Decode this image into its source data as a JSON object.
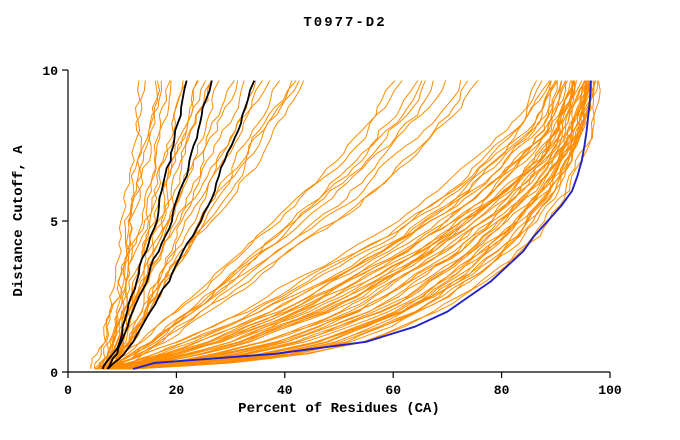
{
  "chart_data": {
    "type": "line",
    "title": "T0977-D2",
    "xlabel": "Percent of Residues (CA)",
    "ylabel": "Distance Cutoff, A",
    "xlim": [
      0,
      100
    ],
    "ylim": [
      0,
      10
    ],
    "x_ticks": [
      0,
      20,
      40,
      60,
      80,
      100
    ],
    "x_tick_labels": [
      "0",
      "20",
      "40",
      "60",
      "80",
      "100"
    ],
    "y_ticks": [
      0,
      5,
      10
    ],
    "y_tick_labels": [
      "0",
      "5",
      "10"
    ],
    "grid": false,
    "legend": "none",
    "colors": {
      "background": "#ffffff",
      "axis": "#000000",
      "models": "#ff8c00",
      "highlight_model": "#2222cc",
      "reference": "#000000"
    },
    "y_levels": [
      0.1,
      0.3,
      0.6,
      1,
      1.5,
      2,
      2.5,
      3,
      3.5,
      4,
      4.5,
      5,
      5.5,
      6,
      6.5,
      7,
      7.5,
      8,
      8.5,
      9,
      9.65
    ],
    "orange_groups": [
      {
        "name": "left-band",
        "count": 26,
        "anchors": [
          [
            6,
            6.5,
            7,
            7.5,
            8,
            8.5,
            9,
            9.3,
            9.6,
            10,
            10.3,
            10.6,
            11,
            11.3,
            11.6,
            12,
            12.3,
            12.6,
            13,
            13.3,
            13.6
          ],
          [
            6.5,
            7.5,
            8.5,
            9.5,
            10.5,
            11.5,
            12.5,
            13.5,
            14.5,
            15.5,
            16.5,
            17.5,
            18.5,
            19.5,
            20.5,
            21.5,
            22.5,
            23.5,
            24.5,
            25.5,
            26.5
          ],
          [
            7,
            8.5,
            10,
            12,
            14,
            16,
            17.5,
            19,
            21,
            23,
            25,
            27,
            29,
            31,
            33,
            35,
            37,
            39,
            41,
            43,
            45
          ]
        ]
      },
      {
        "name": "middle-band",
        "count": 10,
        "anchors": [
          [
            7,
            9,
            11,
            14,
            17,
            20,
            23,
            26,
            29,
            32,
            35,
            38,
            41,
            44,
            47,
            50,
            52,
            54,
            56,
            58,
            60
          ],
          [
            8,
            11,
            14,
            18,
            22,
            26,
            30,
            34,
            38,
            42,
            46,
            50,
            54,
            57,
            60,
            63,
            66,
            69,
            72,
            74,
            76
          ]
        ]
      },
      {
        "name": "right-band",
        "count": 48,
        "anchors": [
          [
            6,
            10,
            15,
            21,
            27,
            33,
            38,
            43,
            48,
            53,
            58,
            62,
            66,
            70,
            73,
            76,
            79,
            82,
            84,
            86,
            88
          ],
          [
            8,
            15,
            22,
            30,
            37,
            44,
            50,
            55,
            60,
            65,
            69,
            73,
            77,
            80,
            83,
            86,
            88,
            90,
            91,
            92,
            93
          ],
          [
            10,
            22,
            32,
            42,
            50,
            57,
            62,
            66,
            70,
            74,
            77,
            80,
            83,
            86,
            88,
            90,
            92,
            93,
            94,
            95,
            96
          ],
          [
            12,
            30,
            44,
            54,
            61,
            67,
            72,
            76,
            80,
            83,
            86,
            88,
            90,
            92,
            93,
            94,
            95,
            96,
            96.5,
            97,
            97.5
          ]
        ]
      }
    ],
    "black_curves": [
      [
        6.5,
        7,
        8,
        9,
        9.8,
        10.8,
        11.6,
        12.5,
        13.3,
        14.2,
        15,
        16,
        16.8,
        17.6,
        18.3,
        19,
        19.6,
        20.2,
        20.8,
        21.4,
        22
      ],
      [
        7,
        7.8,
        9,
        10.2,
        11.3,
        12.4,
        13.4,
        14.5,
        15.5,
        16.6,
        17.6,
        18.7,
        19.7,
        20.7,
        21.6,
        22.5,
        23.4,
        24.2,
        25,
        25.8,
        26.5
      ],
      [
        7.5,
        8.5,
        10,
        11.8,
        13.5,
        15.2,
        16.8,
        18.4,
        20,
        21.6,
        23,
        24.5,
        25.8,
        27,
        28.2,
        29.4,
        30.4,
        31.4,
        32.3,
        33.2,
        34
      ]
    ],
    "blue_curve": [
      12,
      16,
      38,
      55,
      64,
      70,
      74,
      78,
      81,
      84,
      86,
      88.5,
      91,
      93,
      94,
      94.8,
      95.3,
      95.7,
      96,
      96.3,
      96.5
    ]
  }
}
